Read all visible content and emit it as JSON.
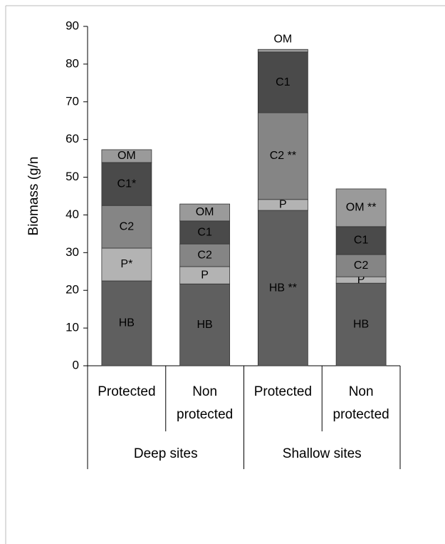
{
  "chart_data": {
    "type": "stacked_bar",
    "y_label": "Biomass (g/n",
    "categories": [
      "Protected",
      "Non protected",
      "Protected",
      "Non protected"
    ],
    "groups": [
      "Deep sites",
      "Shallow sites"
    ],
    "series": [
      {
        "color": "#5f5f5f",
        "values": [
          22.5,
          21.7,
          41.2,
          21.9
        ],
        "labels": [
          "HB",
          "HB",
          "HB **",
          "HB"
        ]
      },
      {
        "color": "#b3b3b3",
        "values": [
          8.7,
          4.6,
          2.9,
          1.7
        ],
        "labels": [
          "P*",
          "P",
          "P",
          "P"
        ]
      },
      {
        "color": "#858585",
        "values": [
          11.3,
          6.0,
          23.0,
          5.9
        ],
        "labels": [
          "C2",
          "C2",
          "C2 **",
          "C2"
        ]
      },
      {
        "color": "#4a4a4a",
        "values": [
          11.4,
          6.1,
          16.1,
          7.4
        ],
        "labels": [
          "C1*",
          "C1",
          "C1",
          "C1"
        ]
      },
      {
        "color": "#9a9a9a",
        "values": [
          3.4,
          4.5,
          0.7,
          10.0
        ],
        "labels": [
          "OM",
          "OM",
          "OM",
          "OM **"
        ]
      }
    ],
    "ylim": [
      0,
      90
    ],
    "yticks": [
      0,
      10,
      20,
      30,
      40,
      50,
      60,
      70,
      80,
      90
    ]
  }
}
